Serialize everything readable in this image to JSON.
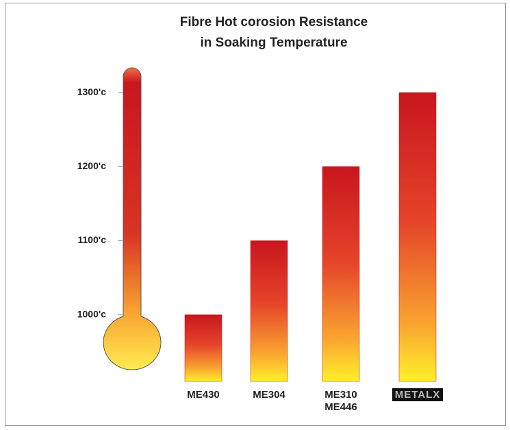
{
  "chart_data": {
    "type": "bar",
    "title": "Fibre Hot corosion Resistance\nin Soaking Temperature",
    "categories": [
      "ME430",
      "ME304",
      "ME310\nME446",
      "METALX"
    ],
    "values": [
      1000,
      1100,
      1200,
      1300
    ],
    "ylim": [
      910,
      1340
    ],
    "yticks": [
      {
        "value": 1000,
        "label": "1000'c"
      },
      {
        "value": 1100,
        "label": "1100'c"
      },
      {
        "value": 1200,
        "label": "1200'c"
      },
      {
        "value": 1300,
        "label": "1300'c"
      }
    ],
    "color": "#c8161e"
  }
}
